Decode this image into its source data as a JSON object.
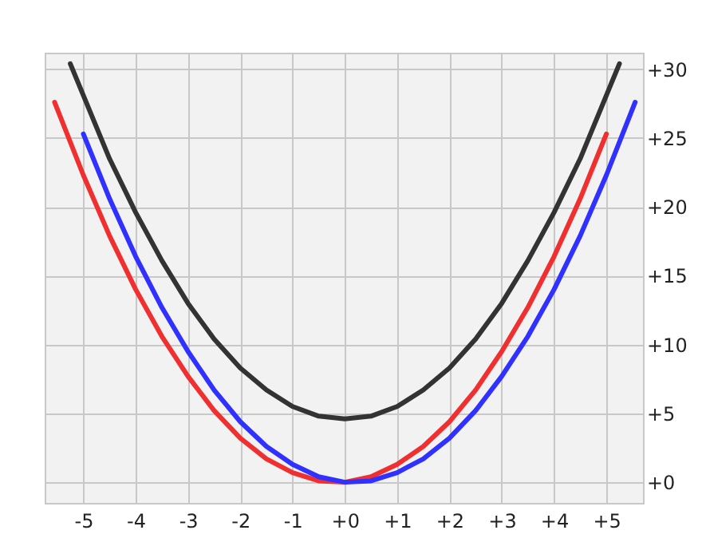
{
  "chart_data": {
    "type": "line",
    "grid": true,
    "marker": "none",
    "line_style": "solid",
    "xlim": [
      -5.74,
      5.7
    ],
    "ylim": [
      -1.5,
      31.2
    ],
    "xticks": [
      -5,
      -4,
      -3,
      -2,
      -1,
      {
        "value": 0,
        "label": "+0"
      },
      {
        "value": 1,
        "label": "+1"
      },
      {
        "value": 2,
        "label": "+2"
      },
      {
        "value": 3,
        "label": "+3"
      },
      {
        "value": 4,
        "label": "+4"
      },
      {
        "value": 5,
        "label": "+5"
      }
    ],
    "yticks": [
      {
        "value": 0,
        "label": "+0"
      },
      {
        "value": 5,
        "label": "+5"
      },
      {
        "value": 10,
        "label": "+10"
      },
      {
        "value": 15,
        "label": "+15"
      },
      {
        "value": 20,
        "label": "+20"
      },
      {
        "value": 25,
        "label": "+25"
      },
      {
        "value": 30,
        "label": "+30"
      }
    ],
    "series": [
      {
        "color": "#f03030",
        "x": [
          -5.55,
          -5,
          -4.5,
          -4,
          -3.5,
          -3,
          -2.5,
          -2,
          -1.5,
          -1,
          -0.5,
          0,
          0.5,
          1,
          1.5,
          2,
          2.5,
          3,
          3.5,
          4,
          4.5,
          5
        ],
        "values": [
          27.6,
          22.3,
          17.9,
          14.0,
          10.6,
          7.7,
          5.2,
          3.2,
          1.7,
          0.7,
          0.1,
          0.0,
          0.4,
          1.3,
          2.6,
          4.4,
          6.7,
          9.5,
          12.7,
          16.4,
          20.6,
          25.3
        ]
      },
      {
        "color": "#3030ff",
        "x": [
          -5,
          -4.5,
          -4,
          -3.5,
          -3,
          -2.5,
          -2,
          -1.5,
          -1,
          -0.5,
          0,
          0.5,
          1,
          1.5,
          2,
          2.5,
          3,
          3.5,
          4,
          4.5,
          5,
          5.55
        ],
        "values": [
          25.3,
          20.6,
          16.4,
          12.7,
          9.5,
          6.7,
          4.4,
          2.6,
          1.3,
          0.4,
          0.0,
          0.1,
          0.7,
          1.7,
          3.2,
          5.2,
          7.7,
          10.6,
          14.0,
          17.9,
          22.3,
          27.6
        ]
      },
      {
        "color": "#333333",
        "x": [
          -5.25,
          -4.5,
          -4,
          -3.5,
          -3,
          -2.5,
          -2,
          -1.5,
          -1,
          -0.5,
          0,
          0.5,
          1,
          1.5,
          2,
          2.5,
          3,
          3.5,
          4,
          4.5,
          5.25
        ],
        "values": [
          30.4,
          23.5,
          19.6,
          16.1,
          13.0,
          10.4,
          8.3,
          6.7,
          5.5,
          4.8,
          4.6,
          4.8,
          5.5,
          6.7,
          8.3,
          10.4,
          13.0,
          16.1,
          19.6,
          23.5,
          30.4
        ]
      }
    ]
  }
}
